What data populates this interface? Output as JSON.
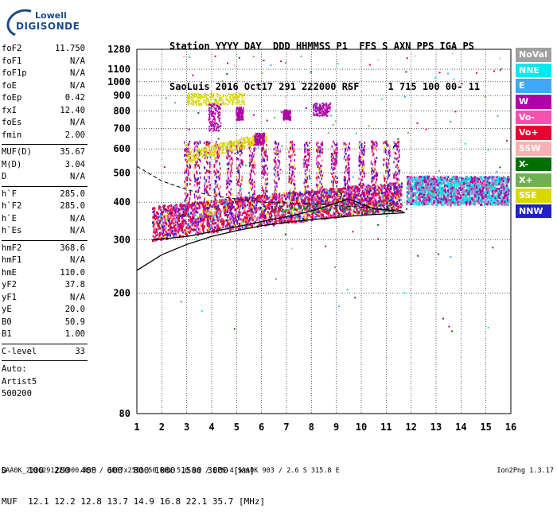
{
  "logo": {
    "line1": "Lowell",
    "line2": "DIGISONDE"
  },
  "header": {
    "row1": "Station YYYY DAY  DDD HHMMSS P1  FFS S AXN PPS IGA PS",
    "row2": "SaoLuis 2016 Oct17 291 222000 RSF     1 715 100 00- 11"
  },
  "params": {
    "group1": [
      {
        "label": "foF2",
        "value": "11.750"
      },
      {
        "label": "foF1",
        "value": "N/A"
      },
      {
        "label": "foF1p",
        "value": "N/A"
      },
      {
        "label": "foE",
        "value": "N/A"
      },
      {
        "label": "foEp",
        "value": "0.42"
      },
      {
        "label": "fxI",
        "value": "12.40"
      },
      {
        "label": "foEs",
        "value": "N/A"
      },
      {
        "label": "fmin",
        "value": "2.00"
      }
    ],
    "group2": [
      {
        "label": "MUF(D)",
        "value": "35.67"
      },
      {
        "label": "M(D)",
        "value": "3.04"
      },
      {
        "label": "D",
        "value": "N/A"
      }
    ],
    "group3": [
      {
        "label": "h`F",
        "value": "285.0"
      },
      {
        "label": "h`F2",
        "value": "285.0"
      },
      {
        "label": "h`E",
        "value": "N/A"
      },
      {
        "label": "h`Es",
        "value": "N/A"
      }
    ],
    "group4": [
      {
        "label": "hmF2",
        "value": "368.6"
      },
      {
        "label": "hmF1",
        "value": "N/A"
      },
      {
        "label": "hmE",
        "value": "110.0"
      },
      {
        "label": "yF2",
        "value": "37.8"
      },
      {
        "label": "yF1",
        "value": "N/A"
      },
      {
        "label": "yE",
        "value": "20.0"
      },
      {
        "label": "B0",
        "value": "50.9"
      },
      {
        "label": "B1",
        "value": "1.00"
      }
    ],
    "group5": [
      {
        "label": "C-level",
        "value": "33"
      }
    ],
    "auto": [
      "Auto:",
      "Artist5",
      "500200"
    ]
  },
  "legend": [
    {
      "label": "NoVal",
      "color": "#a0a0a0"
    },
    {
      "label": "NNE",
      "color": "#00e8f0"
    },
    {
      "label": "E",
      "color": "#40a8f8"
    },
    {
      "label": "W",
      "color": "#b000a8"
    },
    {
      "label": "Vo-",
      "color": "#f850b0"
    },
    {
      "label": "Vo+",
      "color": "#e80030"
    },
    {
      "label": "SSW",
      "color": "#f8b0b0"
    },
    {
      "label": "X-",
      "color": "#007000"
    },
    {
      "label": "X+",
      "color": "#70b050"
    },
    {
      "label": "SSE",
      "color": "#d8d800"
    },
    {
      "label": "NNW",
      "color": "#2020c8"
    }
  ],
  "footer": {
    "d_row": "D    100  200  400  600  800 1000 1500 3000 [km]",
    "muf_row": "MUF  12.1 12.2 12.8 13.7 14.9 16.8 22.1 35.7 [MHz]",
    "file_row": "SAA0K_2016291222000.RSF / 300fx256h 50 kHz 5.0 km / DPS-4 SAA0K 903 / 2.6 S 315.8 E",
    "version": "Ion2Png 1.3.17"
  },
  "chart_data": {
    "type": "scatter",
    "xlim": [
      1,
      16
    ],
    "ylim": [
      80,
      1280
    ],
    "y_scale": "log",
    "x_ticks": [
      1,
      2,
      3,
      4,
      5,
      6,
      7,
      8,
      9,
      10,
      11,
      12,
      13,
      14,
      15,
      16
    ],
    "y_ticks": [
      80,
      200,
      300,
      400,
      500,
      600,
      700,
      800,
      900,
      1000,
      1100,
      1280
    ],
    "grid": true,
    "traces": [
      {
        "name": "NNE",
        "freq_range": [
          11.8,
          15.9
        ],
        "height_range": [
          390,
          520
        ]
      },
      {
        "name": "W",
        "freq_range": [
          1.5,
          15.9
        ],
        "height_range": [
          300,
          900
        ]
      },
      {
        "name": "Vo+",
        "freq_range": [
          1.6,
          11.6
        ],
        "height_range": [
          290,
          440
        ]
      },
      {
        "name": "SSE",
        "freq_range": [
          2.8,
          6.2
        ],
        "height_range": [
          380,
          920
        ]
      },
      {
        "name": "NNW",
        "freq_range": [
          2.2,
          11.5
        ],
        "height_range": [
          360,
          470
        ]
      }
    ],
    "profile_curve": {
      "x": [
        1.0,
        2.0,
        3.0,
        4.0,
        5.0,
        6.0,
        7.0,
        8.0,
        9.0,
        10.0,
        11.0,
        11.75
      ],
      "y": [
        238,
        268,
        290,
        308,
        322,
        334,
        343,
        350,
        356,
        362,
        366,
        369
      ]
    }
  }
}
